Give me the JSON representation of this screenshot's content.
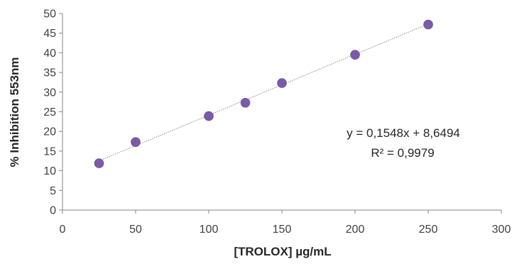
{
  "chart_data": {
    "type": "scatter",
    "title": "",
    "xlabel": "[TROLOX] µg/mL",
    "ylabel": "% Inhibition 553nm",
    "xlim": [
      0,
      300
    ],
    "ylim": [
      0,
      50
    ],
    "x_ticks": [
      0,
      50,
      100,
      150,
      200,
      250,
      300
    ],
    "y_ticks": [
      0,
      5,
      10,
      15,
      20,
      25,
      30,
      35,
      40,
      45,
      50
    ],
    "grid": false,
    "legend": "none",
    "series": [
      {
        "x": [
          25,
          50,
          100,
          125,
          150,
          200,
          250
        ],
        "y": [
          11.9,
          17.3,
          23.9,
          27.3,
          32.3,
          39.5,
          47.2
        ],
        "color": "#7b5aa6"
      }
    ],
    "trendline": {
      "type": "linear",
      "slope": 0.1548,
      "intercept": 8.6494,
      "x_range": [
        25,
        250
      ],
      "color": "#8c8c8c",
      "style": "dotted"
    },
    "annotations": [
      "y = 0,1548x + 8,6494",
      "R² = 0,9979"
    ],
    "colors": {
      "axis": "#868686",
      "text": "#404040"
    }
  }
}
